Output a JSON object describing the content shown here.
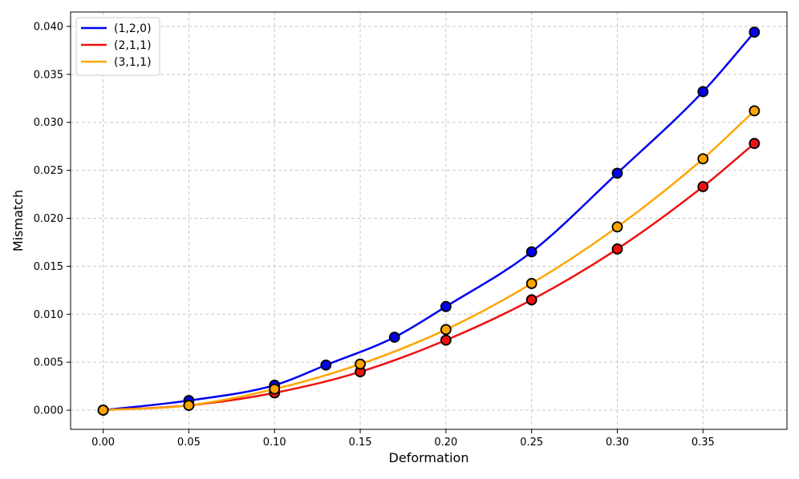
{
  "chart_data": {
    "type": "line",
    "title": "",
    "xlabel": "Deformation",
    "ylabel": "Mismatch",
    "xlim": [
      -0.019,
      0.399
    ],
    "ylim": [
      -0.002,
      0.0415
    ],
    "x_ticks": [
      0.0,
      0.05,
      0.1,
      0.15,
      0.2,
      0.25,
      0.3,
      0.35
    ],
    "x_tick_labels": [
      "0.00",
      "0.05",
      "0.10",
      "0.15",
      "0.20",
      "0.25",
      "0.30",
      "0.35"
    ],
    "y_ticks": [
      0.0,
      0.005,
      0.01,
      0.015,
      0.02,
      0.025,
      0.03,
      0.035,
      0.04
    ],
    "y_tick_labels": [
      "0.000",
      "0.005",
      "0.010",
      "0.015",
      "0.020",
      "0.025",
      "0.030",
      "0.035",
      "0.040"
    ],
    "grid": true,
    "legend_position": "top-left",
    "series": [
      {
        "name": "(1,2,0)",
        "color": "#0000ee",
        "x": [
          0.0,
          0.05,
          0.1,
          0.13,
          0.17,
          0.2,
          0.25,
          0.3,
          0.35,
          0.38
        ],
        "y": [
          0.0,
          0.001,
          0.0026,
          0.0047,
          0.0076,
          0.0108,
          0.0165,
          0.0247,
          0.0332,
          0.0394
        ]
      },
      {
        "name": "(2,1,1)",
        "color": "#ee1111",
        "x": [
          0.0,
          0.05,
          0.1,
          0.15,
          0.2,
          0.25,
          0.3,
          0.35,
          0.38
        ],
        "y": [
          0.0,
          0.0005,
          0.0018,
          0.004,
          0.0073,
          0.0115,
          0.0168,
          0.0233,
          0.0278
        ]
      },
      {
        "name": "(3,1,1)",
        "color": "#ffa500",
        "x": [
          0.0,
          0.05,
          0.1,
          0.15,
          0.2,
          0.25,
          0.3,
          0.35,
          0.38
        ],
        "y": [
          0.0,
          0.0005,
          0.0022,
          0.0048,
          0.0084,
          0.0132,
          0.0191,
          0.0262,
          0.0312
        ]
      }
    ]
  }
}
